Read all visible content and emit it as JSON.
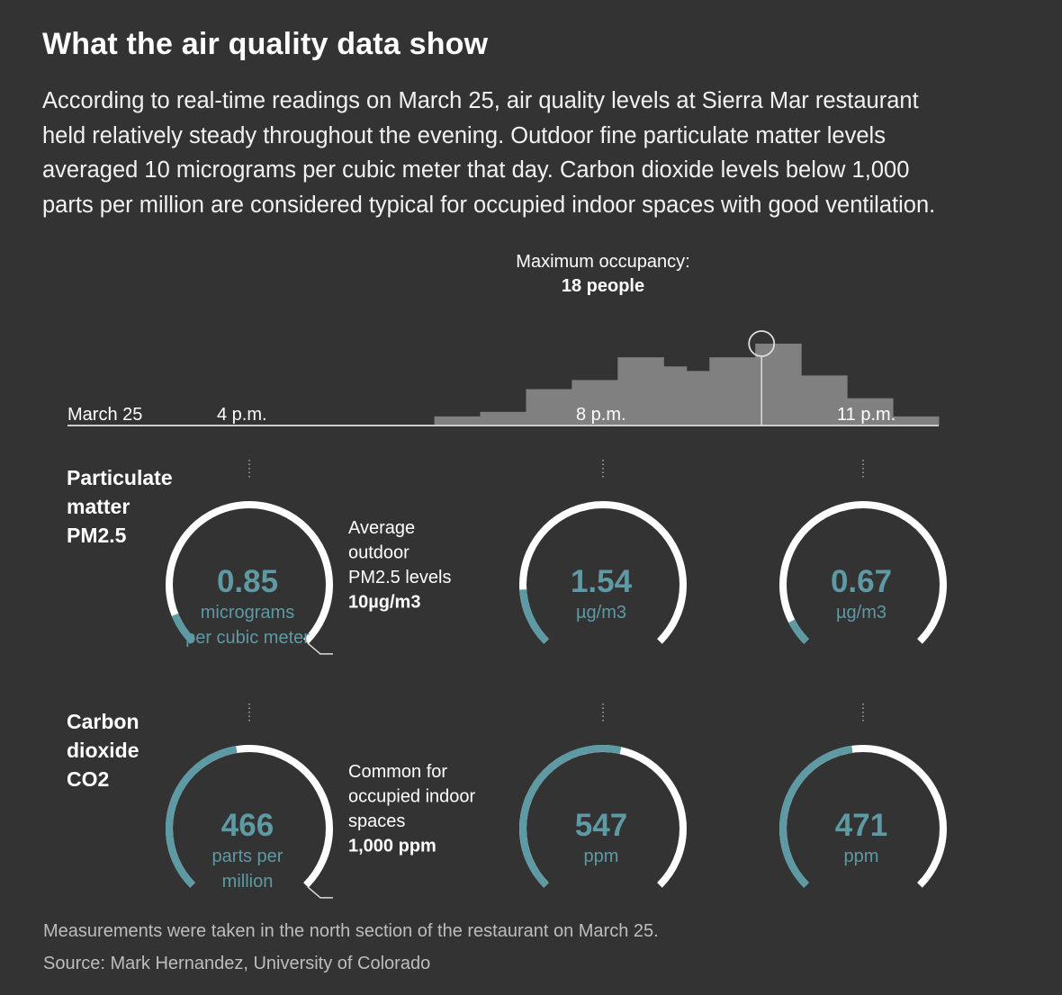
{
  "header": {
    "title": "What the air quality data show",
    "intro": "According to real-time readings on March 25, air quality levels at Sierra Mar restaurant held relatively steady throughout the evening. Outdoor fine particulate matter levels averaged 10 micrograms per cubic meter that day. Carbon dioxide levels below 1,000 parts per million are considered typical for occupied indoor spaces with good ventilation."
  },
  "colors": {
    "background": "#333333",
    "histogram": "#808080",
    "accent": "#5e9aa4",
    "gauge_track": "#ffffff",
    "axis": "#cccccc"
  },
  "chart_data": [
    {
      "type": "area",
      "name": "occupancy",
      "annotation_label": "Maximum occupancy:",
      "annotation_value": "18 people",
      "max_occupancy": 18,
      "time_labels": [
        "March 25",
        "4 p.m.",
        "8 p.m.",
        "11 p.m."
      ],
      "x_range_hours": [
        14.0,
        23.5
      ],
      "bins": [
        {
          "start": 18.0,
          "end": 18.5,
          "value": 2
        },
        {
          "start": 18.5,
          "end": 19.0,
          "value": 3
        },
        {
          "start": 19.0,
          "end": 19.5,
          "value": 8
        },
        {
          "start": 19.5,
          "end": 20.0,
          "value": 10
        },
        {
          "start": 20.0,
          "end": 20.5,
          "value": 15
        },
        {
          "start": 20.5,
          "end": 20.75,
          "value": 13
        },
        {
          "start": 20.75,
          "end": 21.0,
          "value": 12
        },
        {
          "start": 21.0,
          "end": 21.5,
          "value": 15
        },
        {
          "start": 21.5,
          "end": 22.0,
          "value": 18
        },
        {
          "start": 22.0,
          "end": 22.5,
          "value": 11
        },
        {
          "start": 22.5,
          "end": 23.0,
          "value": 6
        },
        {
          "start": 23.0,
          "end": 23.5,
          "value": 2
        }
      ],
      "max_marker_time": 21.5
    },
    {
      "type": "gauge",
      "name": "pm25",
      "label_lines": [
        "Particulate",
        "matter",
        "PM2.5"
      ],
      "reference_value": 10,
      "reference_lines": [
        "Average",
        "outdoor",
        "PM2.5 levels"
      ],
      "reference_value_label": "10µg/m3",
      "readings": [
        {
          "time": 16,
          "value": 0.85,
          "value_label": "0.85",
          "unit_lines": [
            "micrograms",
            "per cubic meter"
          ]
        },
        {
          "time": 20,
          "value": 1.54,
          "value_label": "1.54",
          "unit_lines": [
            "µg/m3"
          ]
        },
        {
          "time": 23,
          "value": 0.67,
          "value_label": "0.67",
          "unit_lines": [
            "µg/m3"
          ]
        }
      ]
    },
    {
      "type": "gauge",
      "name": "co2",
      "label_lines": [
        "Carbon",
        "dioxide",
        "CO2"
      ],
      "reference_value": 1000,
      "reference_lines": [
        "Common for",
        "occupied indoor",
        "spaces"
      ],
      "reference_value_label": "1,000 ppm",
      "readings": [
        {
          "time": 16,
          "value": 466,
          "value_label": "466",
          "unit_lines": [
            "parts per",
            "million"
          ]
        },
        {
          "time": 20,
          "value": 547,
          "value_label": "547",
          "unit_lines": [
            "ppm"
          ]
        },
        {
          "time": 23,
          "value": 471,
          "value_label": "471",
          "unit_lines": [
            "ppm"
          ]
        }
      ]
    }
  ],
  "footer": {
    "note": "Measurements were taken in the north section of the restaurant on March 25.",
    "source": "Source: Mark Hernandez, University of Colorado"
  }
}
